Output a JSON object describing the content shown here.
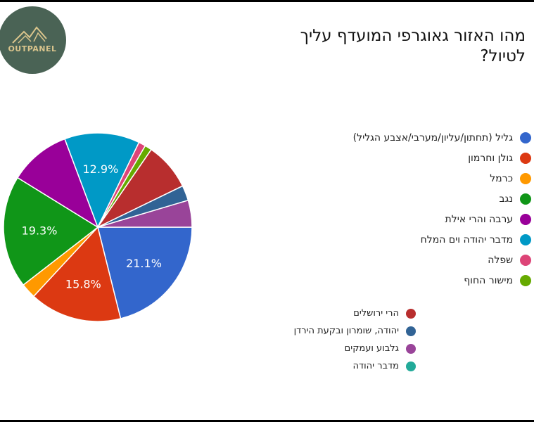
{
  "logo": {
    "text": "OUTPANEL"
  },
  "title": "מהו האזור גאוגרפי המועדף עליך לטיול?",
  "chart_data": {
    "type": "pie",
    "slices": [
      {
        "label": "גליל (תחתון/עליון/מערבי/אצבע הגליל)",
        "value": 21.1,
        "color": "#3366cc",
        "data_label": "21.1%"
      },
      {
        "label": "גולן וחרמון",
        "value": 15.8,
        "color": "#dc3912",
        "data_label": "15.8%"
      },
      {
        "label": "כרמל",
        "value": 2.6,
        "color": "#ff9900",
        "data_label": ""
      },
      {
        "label": "נגב",
        "value": 19.3,
        "color": "#109618",
        "data_label": "19.3%"
      },
      {
        "label": "ערבה והרי אילת",
        "value": 10.5,
        "color": "#990099",
        "data_label": ""
      },
      {
        "label": "מדבר יהודה וים המלח",
        "value": 12.9,
        "color": "#0099c6",
        "data_label": "12.9%"
      },
      {
        "label": "שפלה",
        "value": 1.2,
        "color": "#dd4477",
        "data_label": ""
      },
      {
        "label": "מישור החוף",
        "value": 1.2,
        "color": "#66aa00",
        "data_label": ""
      },
      {
        "label": "הרי ירושלים",
        "value": 8.2,
        "color": "#b82e2e",
        "data_label": ""
      },
      {
        "label": "יהודה, שומרון ובקעת הירדן",
        "value": 2.6,
        "color": "#316395",
        "data_label": ""
      },
      {
        "label": "גלבוע ועמקים",
        "value": 4.6,
        "color": "#994499",
        "data_label": ""
      },
      {
        "label": "מדבר יהודה",
        "value": 0,
        "color": "#22aa99",
        "data_label": ""
      }
    ],
    "legend": {
      "placement": "right",
      "group_a": [
        "גליל (תחתון/עליון/מערבי/אצבע הגליל)",
        "גולן וחרמון",
        "כרמל",
        "נגב",
        "ערבה והרי אילת",
        "מדבר יהודה וים המלח",
        "שפלה",
        "מישור החוף"
      ],
      "group_b": [
        "הרי ירושלים",
        "יהודה, שומרון ובקעת הירדן",
        "גלבוע ועמקים",
        "מדבר יהודה"
      ]
    },
    "start_angle_deg": 90,
    "direction": "clockwise"
  }
}
